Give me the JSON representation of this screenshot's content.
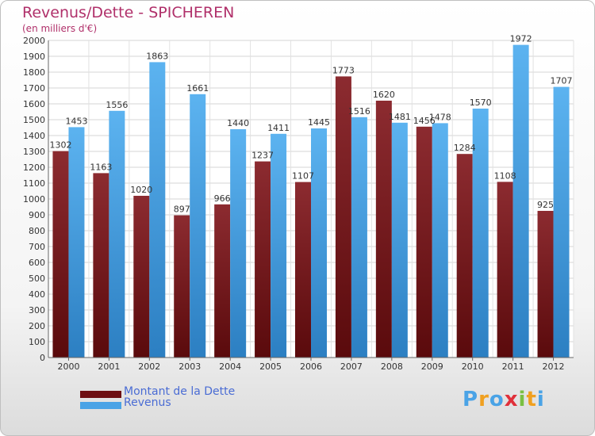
{
  "header": {
    "title": "Revenus/Dette - SPICHEREN",
    "subtitle": "(en milliers d'€)"
  },
  "chart_data": {
    "type": "bar",
    "categories": [
      "2000",
      "2001",
      "2002",
      "2003",
      "2004",
      "2005",
      "2006",
      "2007",
      "2008",
      "2009",
      "2010",
      "2011",
      "2012"
    ],
    "series": [
      {
        "name": "Montant de la Dette",
        "values": [
          1302,
          1163,
          1020,
          897,
          966,
          1237,
          1107,
          1773,
          1620,
          1456,
          1284,
          1108,
          925
        ],
        "color": "#7a1a1e"
      },
      {
        "name": "Revenus",
        "values": [
          1453,
          1556,
          1863,
          1661,
          1440,
          1411,
          1445,
          1516,
          1481,
          1478,
          1570,
          1972,
          1707
        ],
        "color": "#4aa3e6"
      }
    ],
    "title": "Revenus/Dette - SPICHEREN",
    "ylabel": "(en milliers d'€)",
    "ylim": [
      0,
      2000
    ],
    "yticks": [
      0,
      100,
      200,
      300,
      400,
      500,
      600,
      700,
      800,
      900,
      1000,
      1100,
      1200,
      1300,
      1400,
      1500,
      1600,
      1700,
      1800,
      1900,
      2000
    ],
    "grid": true,
    "legend_position": "bottom-left"
  },
  "legend": {
    "items": [
      {
        "label": "Montant de la Dette",
        "color": "#6e0f12"
      },
      {
        "label": "Revenus",
        "color": "#4aa3e6"
      }
    ]
  },
  "logo": {
    "text": "Proxiti",
    "icon": "proxiti-logo"
  }
}
